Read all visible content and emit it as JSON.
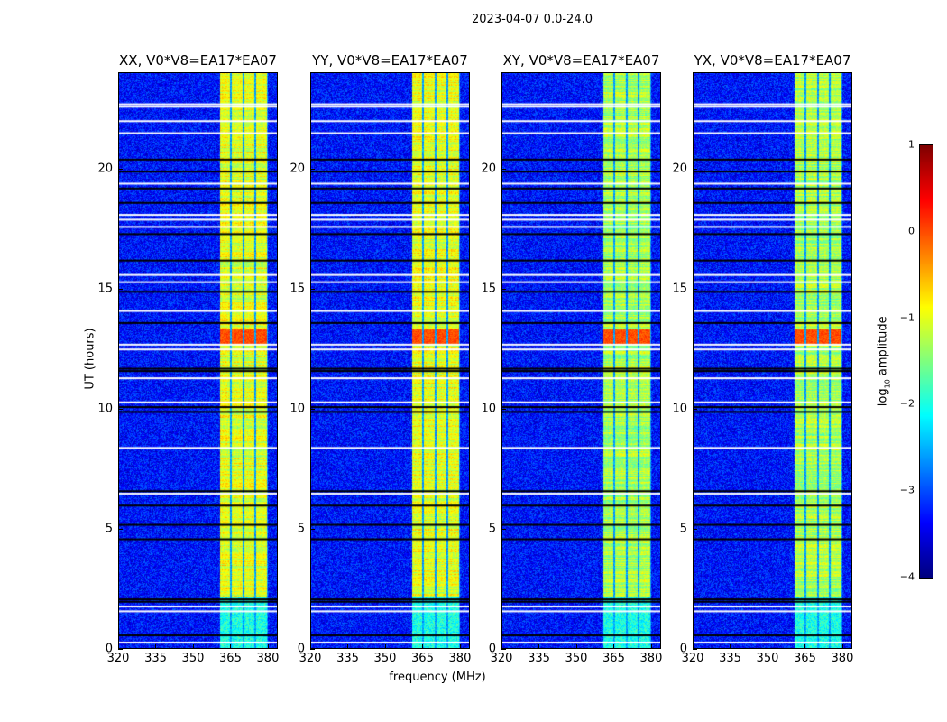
{
  "chart_data": {
    "type": "heatmap",
    "title": "2023-04-07 0.0-24.0",
    "xlabel": "frequency (MHz)",
    "ylabel": "UT (hours)",
    "xlim": [
      320,
      384
    ],
    "ylim": [
      0,
      24
    ],
    "xticks": [
      320,
      335,
      350,
      365,
      380
    ],
    "yticks": [
      0,
      5,
      10,
      15,
      20
    ],
    "panels": [
      {
        "title": "XX, V0*V8=EA17*EA07"
      },
      {
        "title": "YY, V0*V8=EA17*EA07"
      },
      {
        "title": "XY, V0*V8=EA17*EA07"
      },
      {
        "title": "YX, V0*V8=EA17*EA07"
      }
    ],
    "band_mhz": [
      360.5,
      380
    ],
    "background_log10_amp": -3.3,
    "band_log10_amp": -1.0,
    "flare_hours": [
      12.7,
      13.3
    ],
    "flagged_white_hours": [
      0.3,
      1.6,
      1.8,
      6.5,
      8.4,
      10.3,
      11.3,
      12.5,
      12.7,
      14.1,
      15.3,
      15.6,
      17.6,
      17.9,
      18.1,
      19.4,
      21.5,
      22.0,
      22.6,
      22.7
    ],
    "flagged_black_hours": [
      0.6,
      2.0,
      2.1,
      4.6,
      5.2,
      6.0,
      6.6,
      9.9,
      10.1,
      11.6,
      11.7,
      13.6,
      14.9,
      16.2,
      17.3,
      18.6,
      19.2,
      19.9,
      20.4
    ],
    "colorbar": {
      "label": "log10 amplitude",
      "ticks": [
        "1",
        "0",
        "−1",
        "−2",
        "−3",
        "−4"
      ],
      "range": [
        -4,
        1
      ],
      "colormap": "jet"
    }
  }
}
